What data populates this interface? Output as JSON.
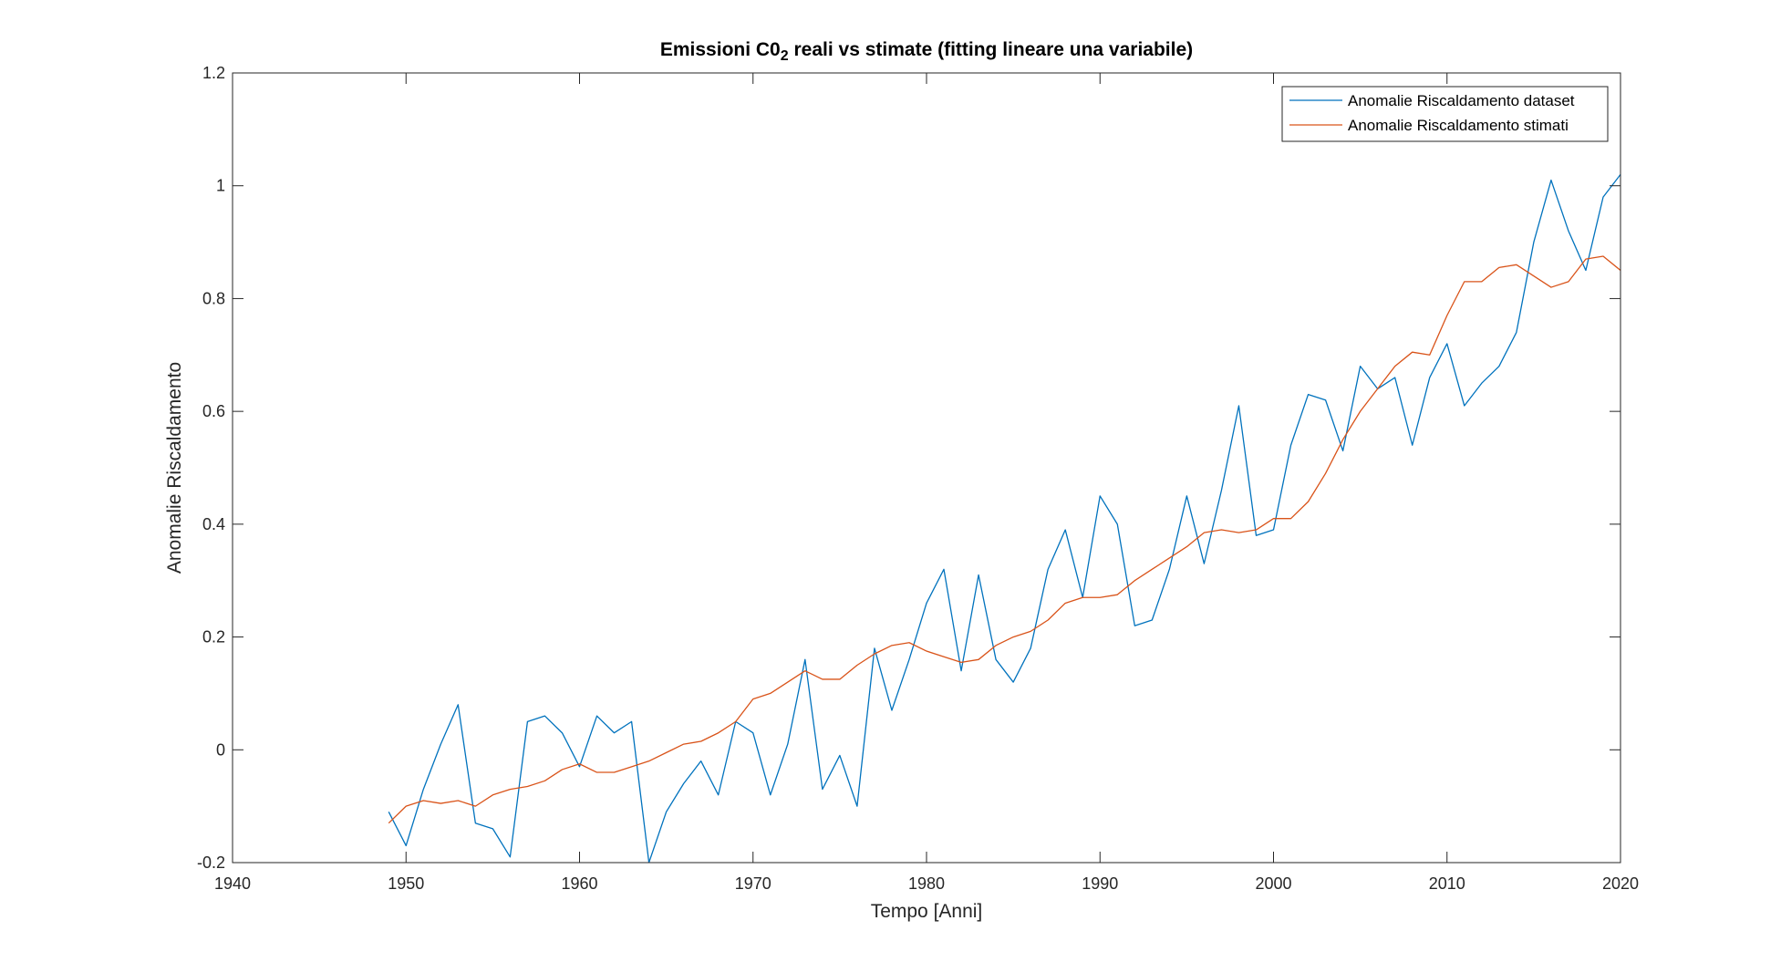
{
  "chart_data": {
    "type": "line",
    "title": {
      "prefix": "Emissioni C0",
      "subscript": "2",
      "suffix": " reali vs stimate (fitting lineare una variabile)"
    },
    "xlabel": "Tempo [Anni]",
    "ylabel": "Anomalie Riscaldamento",
    "xlim": [
      1940,
      2020
    ],
    "ylim": [
      -0.2,
      1.2
    ],
    "xticks": [
      1940,
      1950,
      1960,
      1970,
      1980,
      1990,
      2000,
      2010,
      2020
    ],
    "xtick_labels": [
      "1940",
      "1950",
      "1960",
      "1970",
      "1980",
      "1990",
      "2000",
      "2010",
      "2020"
    ],
    "yticks": [
      -0.2,
      0,
      0.2,
      0.4,
      0.6,
      0.8,
      1,
      1.2
    ],
    "ytick_labels": [
      "-0.2",
      "0",
      "0.2",
      "0.4",
      "0.6",
      "0.8",
      "1",
      "1.2"
    ],
    "grid": false,
    "legend_position": "top-right",
    "x": [
      1949,
      1950,
      1951,
      1952,
      1953,
      1954,
      1955,
      1956,
      1957,
      1958,
      1959,
      1960,
      1961,
      1962,
      1963,
      1964,
      1965,
      1966,
      1967,
      1968,
      1969,
      1970,
      1971,
      1972,
      1973,
      1974,
      1975,
      1976,
      1977,
      1978,
      1979,
      1980,
      1981,
      1982,
      1983,
      1984,
      1985,
      1986,
      1987,
      1988,
      1989,
      1990,
      1991,
      1992,
      1993,
      1994,
      1995,
      1996,
      1997,
      1998,
      1999,
      2000,
      2001,
      2002,
      2003,
      2004,
      2005,
      2006,
      2007,
      2008,
      2009,
      2010,
      2011,
      2012,
      2013,
      2014,
      2015,
      2016,
      2017,
      2018,
      2019,
      2020
    ],
    "series": [
      {
        "name": "Anomalie Riscaldamento dataset",
        "color": "#0072BD",
        "values": [
          -0.11,
          -0.17,
          -0.07,
          0.01,
          0.08,
          -0.13,
          -0.14,
          -0.19,
          0.05,
          0.06,
          0.03,
          -0.03,
          0.06,
          0.03,
          0.05,
          -0.2,
          -0.11,
          -0.06,
          -0.02,
          -0.08,
          0.05,
          0.03,
          -0.08,
          0.01,
          0.16,
          -0.07,
          -0.01,
          -0.1,
          0.18,
          0.07,
          0.16,
          0.26,
          0.32,
          0.14,
          0.31,
          0.16,
          0.12,
          0.18,
          0.32,
          0.39,
          0.27,
          0.45,
          0.4,
          0.22,
          0.23,
          0.32,
          0.45,
          0.33,
          0.46,
          0.61,
          0.38,
          0.39,
          0.54,
          0.63,
          0.62,
          0.53,
          0.68,
          0.64,
          0.66,
          0.54,
          0.66,
          0.72,
          0.61,
          0.65,
          0.68,
          0.74,
          0.9,
          1.01,
          0.92,
          0.85,
          0.98,
          1.02
        ]
      },
      {
        "name": "Anomalie Riscaldamento stimati",
        "color": "#D95319",
        "values": [
          -0.13,
          -0.1,
          -0.09,
          -0.095,
          -0.09,
          -0.1,
          -0.08,
          -0.07,
          -0.065,
          -0.055,
          -0.035,
          -0.025,
          -0.04,
          -0.04,
          -0.03,
          -0.02,
          -0.005,
          0.01,
          0.015,
          0.03,
          0.05,
          0.09,
          0.1,
          0.12,
          0.14,
          0.125,
          0.125,
          0.15,
          0.17,
          0.185,
          0.19,
          0.175,
          0.165,
          0.155,
          0.16,
          0.185,
          0.2,
          0.21,
          0.23,
          0.26,
          0.27,
          0.27,
          0.275,
          0.3,
          0.32,
          0.34,
          0.36,
          0.385,
          0.39,
          0.385,
          0.39,
          0.41,
          0.41,
          0.44,
          0.49,
          0.55,
          0.6,
          0.64,
          0.68,
          0.705,
          0.7,
          0.77,
          0.83,
          0.83,
          0.855,
          0.86,
          0.84,
          0.82,
          0.83,
          0.87,
          0.875,
          0.85
        ]
      }
    ]
  }
}
